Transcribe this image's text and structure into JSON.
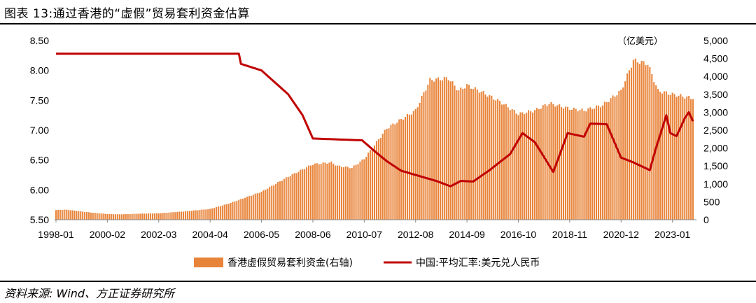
{
  "figure": {
    "title": "图表 13:通过香港的“虚假”贸易套利资金估算",
    "source": "资料来源: Wind、方正证券研究所"
  },
  "chart_data": {
    "type": "bar+line",
    "right_axis_unit": "（亿美元）",
    "x_tick_labels": [
      "1998-01",
      "2000-02",
      "2002-03",
      "2004-04",
      "2006-05",
      "2008-06",
      "2010-07",
      "2012-08",
      "2014-09",
      "2016-10",
      "2018-11",
      "2020-12",
      "2023-01"
    ],
    "y_left": {
      "ticks": [
        "5.50",
        "6.00",
        "6.50",
        "7.00",
        "7.50",
        "8.00",
        "8.50"
      ],
      "ylim": [
        5.5,
        8.5
      ]
    },
    "y_right": {
      "ticks": [
        "0",
        "500",
        "1,000",
        "1,500",
        "2,000",
        "2,500",
        "3,000",
        "3,500",
        "4,000",
        "4,500",
        "5,000"
      ],
      "ylim": [
        0,
        5000
      ]
    },
    "colors": {
      "bars": "#E8843A",
      "line": "#C00000"
    },
    "series": [
      {
        "name": "香港虚假贸易套利资金(右轴)",
        "type": "bar",
        "axis": "right",
        "anchors": [
          [
            "1998-01",
            270
          ],
          [
            "1998-06",
            280
          ],
          [
            "1999-06",
            200
          ],
          [
            "2000-02",
            160
          ],
          [
            "2000-08",
            150
          ],
          [
            "2001-06",
            170
          ],
          [
            "2002-03",
            180
          ],
          [
            "2003-03",
            230
          ],
          [
            "2004-04",
            300
          ],
          [
            "2005-01",
            450
          ],
          [
            "2006-05",
            780
          ],
          [
            "2007-06",
            1200
          ],
          [
            "2008-06",
            1550
          ],
          [
            "2009-03",
            1600
          ],
          [
            "2009-06",
            1500
          ],
          [
            "2010-01",
            1450
          ],
          [
            "2010-07",
            1700
          ],
          [
            "2011-06",
            2550
          ],
          [
            "2012-01",
            2800
          ],
          [
            "2012-08",
            3050
          ],
          [
            "2013-03",
            3900
          ],
          [
            "2013-12",
            3950
          ],
          [
            "2014-05",
            3600
          ],
          [
            "2014-09",
            3750
          ],
          [
            "2015-03",
            3600
          ],
          [
            "2016-01",
            3300
          ],
          [
            "2016-10",
            2950
          ],
          [
            "2017-06",
            3050
          ],
          [
            "2018-01",
            3250
          ],
          [
            "2018-11",
            3100
          ],
          [
            "2019-06",
            3050
          ],
          [
            "2020-03",
            3200
          ],
          [
            "2020-12",
            3600
          ],
          [
            "2021-06",
            4450
          ],
          [
            "2022-01",
            4350
          ],
          [
            "2022-06",
            3600
          ],
          [
            "2023-01",
            3500
          ],
          [
            "2023-10",
            3400
          ]
        ]
      },
      {
        "name": "中国:平均汇率:美元兑人民币",
        "type": "line",
        "axis": "left",
        "anchors": [
          [
            "1998-01",
            8.28
          ],
          [
            "2005-06",
            8.28
          ],
          [
            "2005-07",
            8.11
          ],
          [
            "2006-05",
            8.0
          ],
          [
            "2007-06",
            7.6
          ],
          [
            "2008-01",
            7.25
          ],
          [
            "2008-06",
            6.86
          ],
          [
            "2010-06",
            6.83
          ],
          [
            "2010-12",
            6.65
          ],
          [
            "2011-06",
            6.48
          ],
          [
            "2012-01",
            6.32
          ],
          [
            "2013-06",
            6.15
          ],
          [
            "2014-01",
            6.06
          ],
          [
            "2014-06",
            6.15
          ],
          [
            "2014-12",
            6.14
          ],
          [
            "2015-08",
            6.33
          ],
          [
            "2016-06",
            6.6
          ],
          [
            "2016-12",
            6.95
          ],
          [
            "2017-06",
            6.8
          ],
          [
            "2018-03",
            6.3
          ],
          [
            "2018-10",
            6.95
          ],
          [
            "2019-06",
            6.89
          ],
          [
            "2019-09",
            7.11
          ],
          [
            "2020-05",
            7.1
          ],
          [
            "2020-12",
            6.54
          ],
          [
            "2021-06",
            6.46
          ],
          [
            "2022-02",
            6.33
          ],
          [
            "2022-05",
            6.7
          ],
          [
            "2022-10",
            7.25
          ],
          [
            "2022-12",
            6.95
          ],
          [
            "2023-03",
            6.9
          ],
          [
            "2023-07",
            7.2
          ],
          [
            "2023-09",
            7.3
          ],
          [
            "2023-11",
            7.15
          ]
        ]
      }
    ],
    "grid": false,
    "legend_position": "bottom"
  }
}
